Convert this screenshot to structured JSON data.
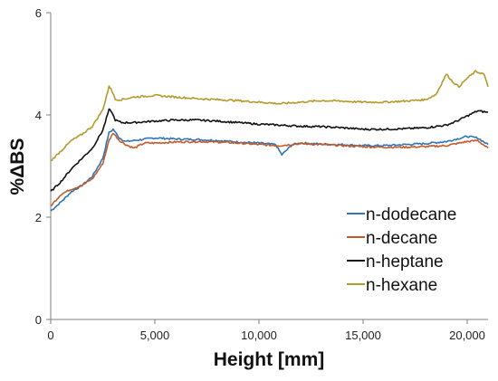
{
  "chart_data": {
    "type": "line",
    "xlabel": "Height [mm]",
    "ylabel": "%ΔBS",
    "xlim": [
      0,
      21000
    ],
    "ylim": [
      0,
      6
    ],
    "x_ticks": [
      0,
      5000,
      10000,
      15000,
      20000
    ],
    "x_tick_labels": [
      "0",
      "5,000",
      "10,000",
      "15,000",
      "20,000"
    ],
    "y_ticks": [
      0,
      2,
      4,
      6
    ],
    "y_tick_labels": [
      "0",
      "2",
      "4",
      "6"
    ],
    "grid": false,
    "legend_position": "bottom-right",
    "series": [
      {
        "name": "n-dodecane",
        "color": "#2e75b6",
        "x": [
          0,
          500,
          1000,
          1500,
          2000,
          2500,
          2800,
          3000,
          3300,
          3600,
          4000,
          5000,
          6000,
          7000,
          8000,
          9000,
          10000,
          10800,
          11100,
          11300,
          11600,
          12000,
          13000,
          14000,
          15000,
          16000,
          17000,
          18000,
          19000,
          20000,
          20500,
          21000
        ],
        "values": [
          2.12,
          2.3,
          2.5,
          2.62,
          2.8,
          3.15,
          3.65,
          3.72,
          3.55,
          3.48,
          3.5,
          3.55,
          3.53,
          3.52,
          3.5,
          3.47,
          3.45,
          3.42,
          3.22,
          3.3,
          3.42,
          3.45,
          3.43,
          3.42,
          3.4,
          3.4,
          3.42,
          3.44,
          3.48,
          3.58,
          3.55,
          3.42
        ]
      },
      {
        "name": "n-decane",
        "color": "#c55a2b",
        "x": [
          0,
          500,
          1000,
          1500,
          2000,
          2500,
          2800,
          3000,
          3300,
          3600,
          4000,
          4500,
          5000,
          6000,
          7000,
          8000,
          9000,
          10000,
          11000,
          12000,
          13000,
          14000,
          15000,
          16000,
          17000,
          18000,
          19000,
          20000,
          20500,
          21000
        ],
        "values": [
          2.22,
          2.45,
          2.55,
          2.62,
          2.75,
          3.05,
          3.5,
          3.65,
          3.5,
          3.42,
          3.35,
          3.45,
          3.45,
          3.47,
          3.48,
          3.47,
          3.45,
          3.42,
          3.4,
          3.44,
          3.42,
          3.4,
          3.38,
          3.37,
          3.37,
          3.38,
          3.4,
          3.48,
          3.5,
          3.35
        ]
      },
      {
        "name": "n-heptane",
        "color": "#111111",
        "x": [
          0,
          500,
          1000,
          1500,
          2000,
          2500,
          2800,
          2900,
          3100,
          3400,
          4000,
          5000,
          6000,
          7000,
          8000,
          9000,
          10000,
          11000,
          12000,
          13000,
          14000,
          15000,
          16000,
          17000,
          18000,
          19000,
          19500,
          20000,
          20500,
          21000
        ],
        "values": [
          2.5,
          2.7,
          2.95,
          3.15,
          3.35,
          3.7,
          4.1,
          4.08,
          3.9,
          3.85,
          3.85,
          3.88,
          3.9,
          3.9,
          3.88,
          3.85,
          3.82,
          3.8,
          3.78,
          3.77,
          3.75,
          3.72,
          3.72,
          3.73,
          3.75,
          3.8,
          3.88,
          3.98,
          4.08,
          4.05
        ]
      },
      {
        "name": "n-hexane",
        "color": "#b39a2a",
        "x": [
          0,
          500,
          1000,
          1500,
          2000,
          2500,
          2800,
          2900,
          3100,
          3400,
          4000,
          5000,
          6000,
          7000,
          8000,
          9000,
          10000,
          11000,
          12000,
          13000,
          14000,
          15000,
          16000,
          17000,
          18000,
          18500,
          19000,
          19300,
          19600,
          20000,
          20400,
          20800,
          21000
        ],
        "values": [
          3.1,
          3.3,
          3.5,
          3.62,
          3.78,
          4.1,
          4.55,
          4.52,
          4.3,
          4.3,
          4.35,
          4.38,
          4.35,
          4.32,
          4.3,
          4.28,
          4.25,
          4.22,
          4.25,
          4.28,
          4.27,
          4.25,
          4.25,
          4.27,
          4.3,
          4.4,
          4.8,
          4.65,
          4.55,
          4.72,
          4.85,
          4.8,
          4.55
        ]
      }
    ]
  }
}
